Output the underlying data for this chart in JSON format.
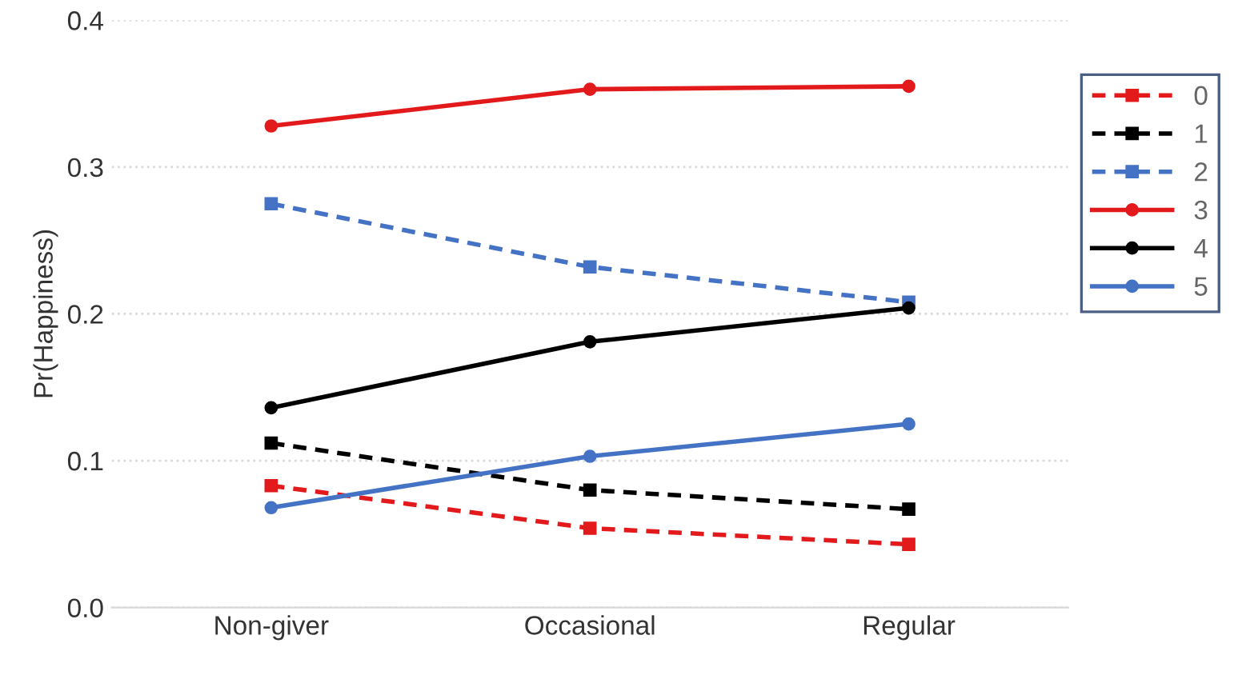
{
  "chart_data": {
    "type": "line",
    "ylabel": "Pr(Happiness)",
    "categories": [
      "Non-giver",
      "Occasional",
      "Regular"
    ],
    "ylim": [
      0,
      0.4
    ],
    "yticks": [
      {
        "value": 0,
        "label": "0.0"
      },
      0.1,
      0.2,
      0.3,
      0.4
    ],
    "grid": "y",
    "legend": "top right",
    "series": [
      {
        "name": "0",
        "color": "#e31a1c",
        "marker": "square",
        "line_style": "dashed",
        "values": [
          0.083,
          0.054,
          0.043
        ]
      },
      {
        "name": "1",
        "color": "#000000",
        "marker": "square",
        "line_style": "dashed",
        "values": [
          0.112,
          0.08,
          0.067
        ]
      },
      {
        "name": "2",
        "color": "#4472c4",
        "marker": "square",
        "line_style": "dashed",
        "values": [
          0.275,
          0.232,
          0.208
        ]
      },
      {
        "name": "3",
        "color": "#e31a1c",
        "marker": "circle",
        "line_style": "solid",
        "values": [
          0.328,
          0.353,
          0.355
        ]
      },
      {
        "name": "4",
        "color": "#000000",
        "marker": "circle",
        "line_style": "solid",
        "values": [
          0.136,
          0.181,
          0.204
        ]
      },
      {
        "name": "5",
        "color": "#4472c4",
        "marker": "circle",
        "line_style": "solid",
        "values": [
          0.068,
          0.103,
          0.125
        ]
      }
    ]
  }
}
